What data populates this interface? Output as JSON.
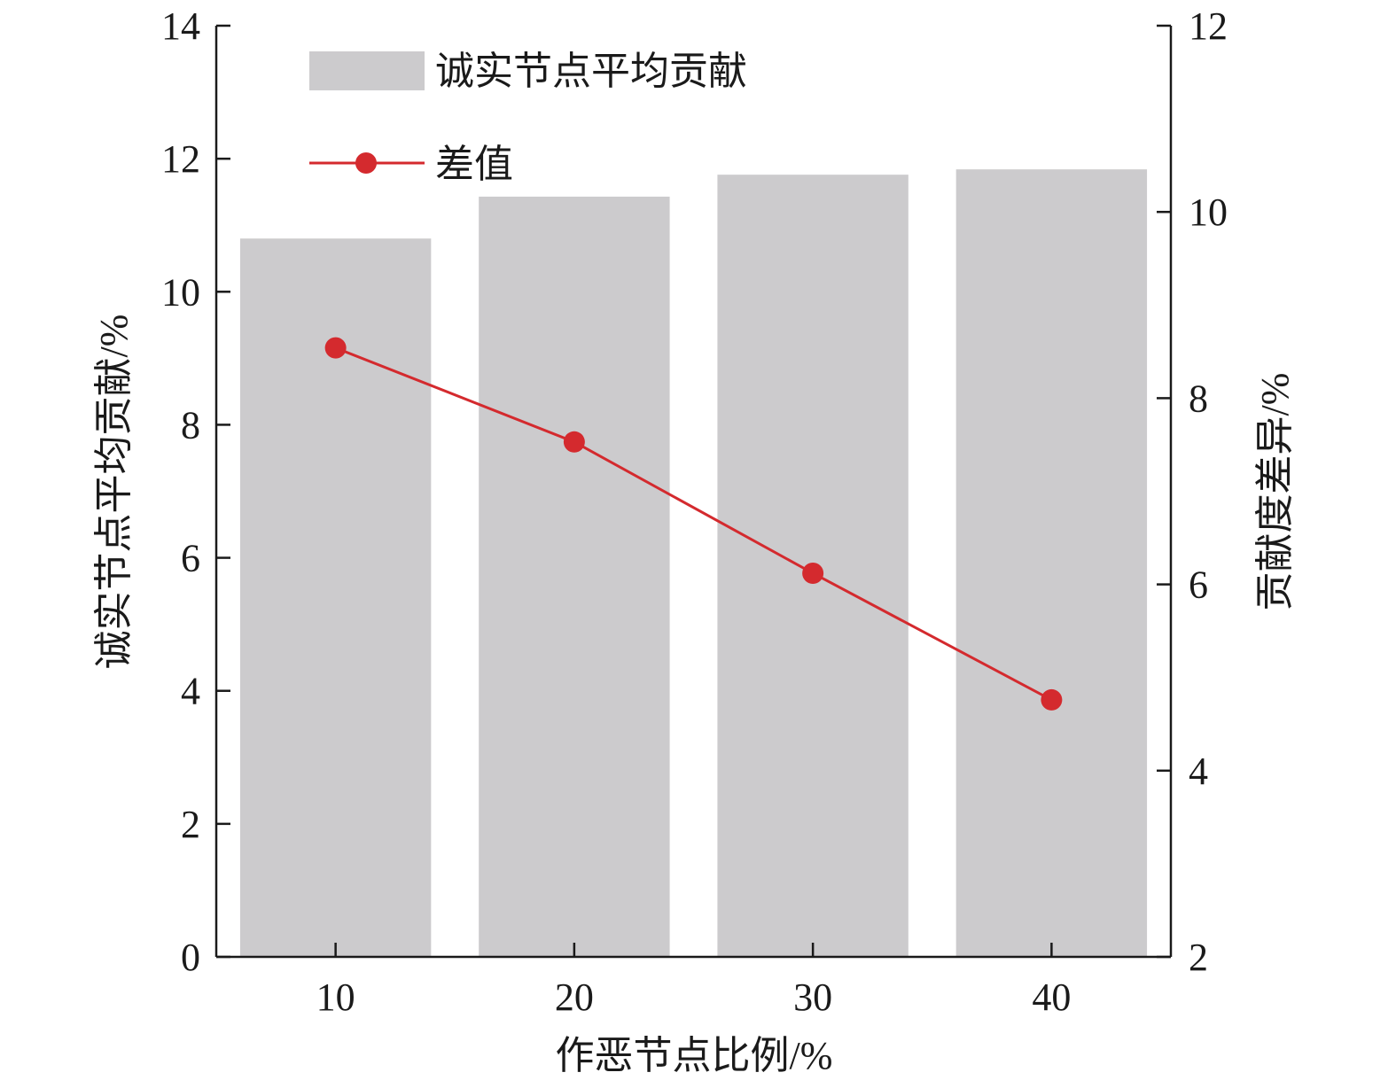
{
  "chart_data": {
    "type": "bar+line",
    "categories": [
      "10",
      "20",
      "30",
      "40"
    ],
    "series": [
      {
        "name": "诚实节点平均贡献",
        "type": "bar",
        "axis": "left",
        "values": [
          10.8,
          11.43,
          11.76,
          11.84
        ],
        "color": "#cccbcd"
      },
      {
        "name": "差值",
        "type": "line",
        "axis": "right",
        "values": [
          8.54,
          7.53,
          6.12,
          4.76
        ],
        "color": "#d42a2e"
      }
    ],
    "xlabel": "作恶节点比例/%",
    "ylabel_left": "诚实节点平均贡献/%",
    "ylabel_right": "贡献度差异/%",
    "ylim_left": [
      0,
      14
    ],
    "yticks_left": [
      "0",
      "2",
      "4",
      "6",
      "8",
      "10",
      "12",
      "14"
    ],
    "ylim_right": [
      2,
      12
    ],
    "yticks_right": [
      "2",
      "4",
      "6",
      "8",
      "10",
      "12"
    ],
    "grid": false,
    "legend_position": "top-left"
  }
}
